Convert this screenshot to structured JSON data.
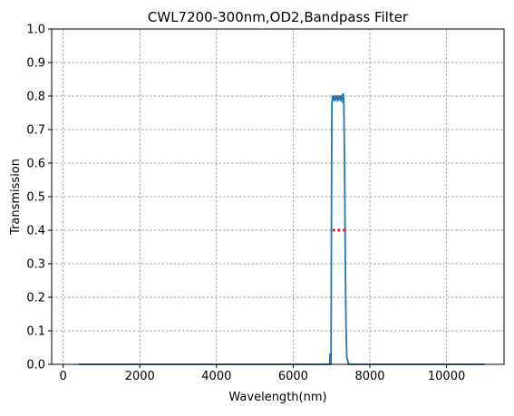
{
  "chart_data": {
    "type": "line",
    "title": "CWL7200-300nm,OD2,Bandpass Filter",
    "xlabel": "Wavelength(nm)",
    "ylabel": "Transmission",
    "xlim": [
      -300,
      11500
    ],
    "ylim": [
      0,
      1.0
    ],
    "x_ticks": [
      0,
      2000,
      4000,
      6000,
      8000,
      10000
    ],
    "x_tick_labels": [
      "0",
      "2000",
      "4000",
      "6000",
      "8000",
      "10000"
    ],
    "y_ticks": [
      0.0,
      0.1,
      0.2,
      0.3,
      0.4,
      0.5,
      0.6,
      0.7,
      0.8,
      0.9,
      1.0
    ],
    "y_tick_labels": [
      "0.0",
      "0.1",
      "0.2",
      "0.3",
      "0.4",
      "0.5",
      "0.6",
      "0.7",
      "0.8",
      "0.9",
      "1.0"
    ],
    "grid": true,
    "colors": {
      "series": "#1f77b4",
      "markers": "#d62728",
      "grid": "#808080"
    },
    "series": [
      {
        "x": [
          400,
          6950,
          6960,
          6970,
          6980,
          6985,
          6990,
          7000,
          7010,
          7030,
          7050,
          7060,
          7080,
          7100,
          7120,
          7140,
          7160,
          7180,
          7200,
          7220,
          7240,
          7260,
          7280,
          7290,
          7300,
          7310,
          7320,
          7340,
          7360,
          7380,
          7400,
          7450,
          11000
        ],
        "y": [
          0.0,
          0.0,
          0.03,
          0.0,
          0.02,
          0.0,
          0.1,
          0.5,
          0.78,
          0.8,
          0.79,
          0.8,
          0.785,
          0.8,
          0.79,
          0.8,
          0.785,
          0.8,
          0.79,
          0.8,
          0.785,
          0.8,
          0.79,
          0.805,
          0.78,
          0.806,
          0.79,
          0.6,
          0.3,
          0.1,
          0.02,
          0.0,
          0.0
        ]
      }
    ],
    "markers": {
      "x": [
        7060,
        7190,
        7330
      ],
      "y": [
        0.4,
        0.4,
        0.4
      ]
    }
  }
}
